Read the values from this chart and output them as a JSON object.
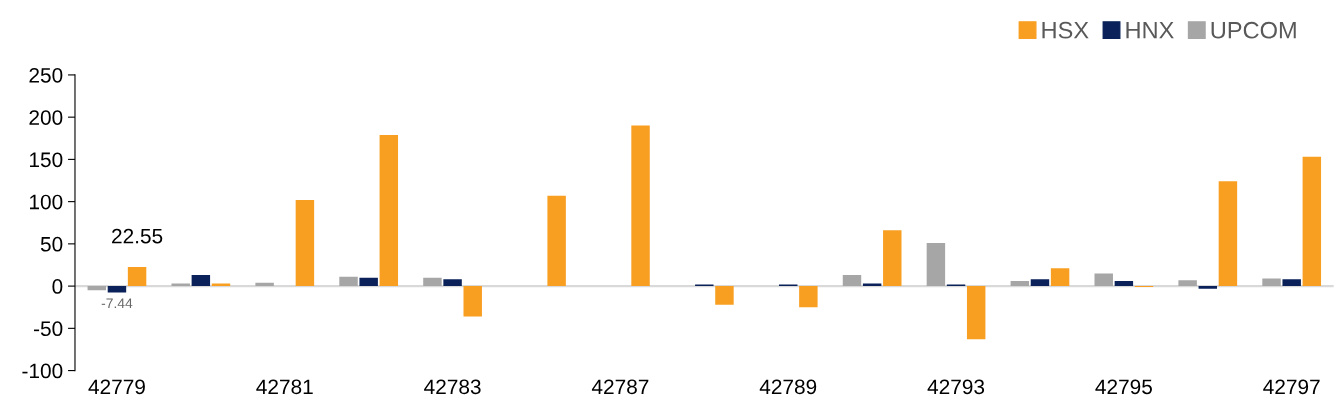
{
  "chart_data": {
    "type": "bar",
    "categories": [
      "42779",
      null,
      "42781",
      null,
      "42783",
      null,
      "42787",
      null,
      "42789",
      null,
      "42793",
      null,
      "42795",
      null,
      "42797"
    ],
    "series": [
      {
        "name": "HSX",
        "color": "#f89f22",
        "values": [
          22.55,
          3,
          102,
          179,
          -36,
          107,
          190,
          -22,
          -25,
          66,
          -63,
          21,
          -1,
          124,
          153
        ],
        "value_labels": [
          "22.55",
          null,
          null,
          null,
          null,
          null,
          null,
          null,
          null,
          null,
          null,
          null,
          null,
          null,
          null
        ]
      },
      {
        "name": "HNX",
        "color": "#0a2259",
        "values": [
          -7.44,
          13,
          0,
          10,
          8,
          0,
          0,
          2,
          2,
          3,
          2,
          8,
          6,
          -3,
          8
        ],
        "value_labels": [
          "-7.44",
          null,
          null,
          null,
          null,
          null,
          null,
          null,
          null,
          null,
          null,
          null,
          null,
          null,
          null
        ]
      },
      {
        "name": "UPCOM",
        "color": "#a6a6a6",
        "values": [
          -5,
          3,
          4,
          11,
          10,
          null,
          0,
          null,
          null,
          13,
          51,
          6,
          15,
          7,
          9
        ]
      }
    ],
    "ylim": [
      -100,
      250
    ],
    "yticks": [
      -100,
      -50,
      0,
      50,
      100,
      150,
      200,
      250
    ],
    "ref_lines": [
      {
        "axis": "y",
        "value": 0,
        "color": "#d9d9d9"
      }
    ],
    "legend": "top right",
    "grid": false
  }
}
